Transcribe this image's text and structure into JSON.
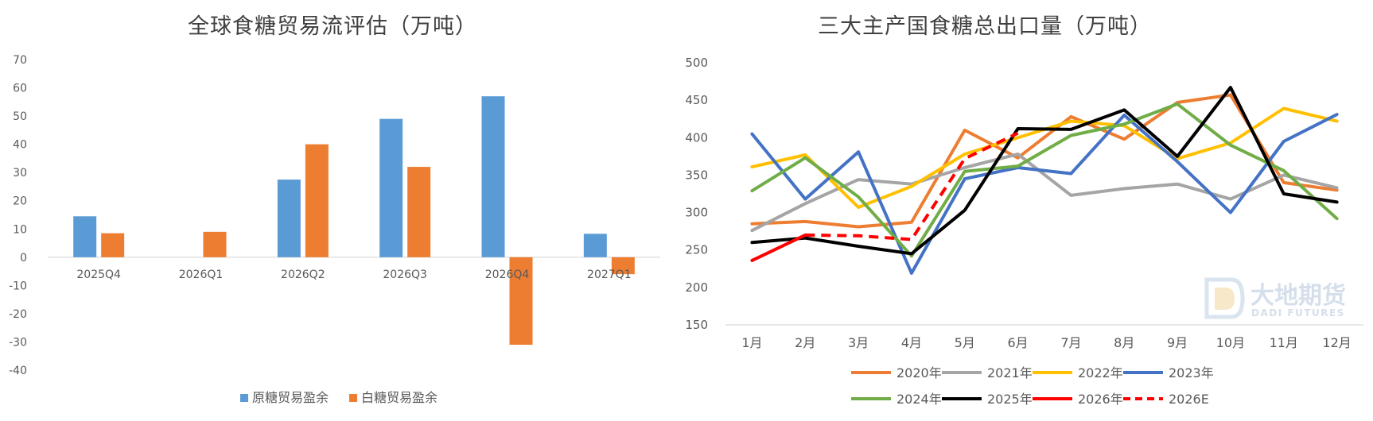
{
  "chart_data": [
    {
      "type": "bar",
      "title": "全球食糖贸易流评估（万吨）",
      "categories": [
        "2025Q4",
        "2026Q1",
        "2026Q2",
        "2026Q3",
        "2026Q4",
        "2027Q1"
      ],
      "series": [
        {
          "name": "原糖贸易盈余",
          "values": [
            14.5,
            null,
            27.5,
            49,
            57,
            8.3
          ],
          "color": "#5B9BD5"
        },
        {
          "name": "白糖贸易盈余",
          "values": [
            8.5,
            9,
            40,
            32,
            -31,
            -6
          ],
          "color": "#ED7D31"
        }
      ],
      "ylim": [
        -40,
        70
      ],
      "yticks": [
        70,
        60,
        50,
        40,
        30,
        20,
        10,
        0,
        -10,
        -20,
        -30,
        -40
      ],
      "legend_position": "bottom"
    },
    {
      "type": "line",
      "title": "三大主产国食糖总出口量（万吨）",
      "categories": [
        "1月",
        "2月",
        "3月",
        "4月",
        "5月",
        "6月",
        "7月",
        "8月",
        "9月",
        "10月",
        "11月",
        "12月"
      ],
      "series": [
        {
          "name": "2020年",
          "values": [
            285,
            288,
            281,
            287,
            410,
            373,
            428,
            398,
            447,
            457,
            340,
            330
          ],
          "color": "#ED7D31",
          "dashed": false
        },
        {
          "name": "2021年",
          "values": [
            276,
            312,
            344,
            338,
            360,
            378,
            323,
            332,
            338,
            318,
            350,
            333
          ],
          "color": "#A5A5A5",
          "dashed": false
        },
        {
          "name": "2022年",
          "values": [
            361,
            377,
            307,
            335,
            378,
            400,
            422,
            416,
            372,
            393,
            439,
            422
          ],
          "color": "#FFC000",
          "dashed": false
        },
        {
          "name": "2023年",
          "values": [
            405,
            318,
            381,
            219,
            345,
            360,
            352,
            430,
            368,
            300,
            395,
            431
          ],
          "color": "#4472C4",
          "dashed": false
        },
        {
          "name": "2024年",
          "values": [
            329,
            373,
            321,
            242,
            355,
            362,
            403,
            418,
            445,
            390,
            356,
            292
          ],
          "color": "#70AD47",
          "dashed": false
        },
        {
          "name": "2025年",
          "values": [
            260,
            266,
            255,
            245,
            303,
            412,
            411,
            437,
            375,
            467,
            325,
            314
          ],
          "color": "#000000",
          "dashed": false
        },
        {
          "name": "2026年",
          "values": [
            236,
            270,
            null,
            null,
            null,
            null,
            null,
            null,
            null,
            null,
            null,
            null
          ],
          "color": "#FF0000",
          "dashed": false
        },
        {
          "name": "2026E",
          "values": [
            null,
            270,
            269,
            264,
            372,
            406,
            null,
            null,
            null,
            null,
            null,
            null
          ],
          "color": "#FF0000",
          "dashed": true
        }
      ],
      "ylim": [
        150,
        500
      ],
      "yticks": [
        500,
        450,
        400,
        350,
        300,
        250,
        200,
        150
      ],
      "legend_position": "bottom"
    }
  ],
  "watermark": {
    "brand_cn": "大地期货",
    "brand_en": "DADI FUTURES"
  }
}
